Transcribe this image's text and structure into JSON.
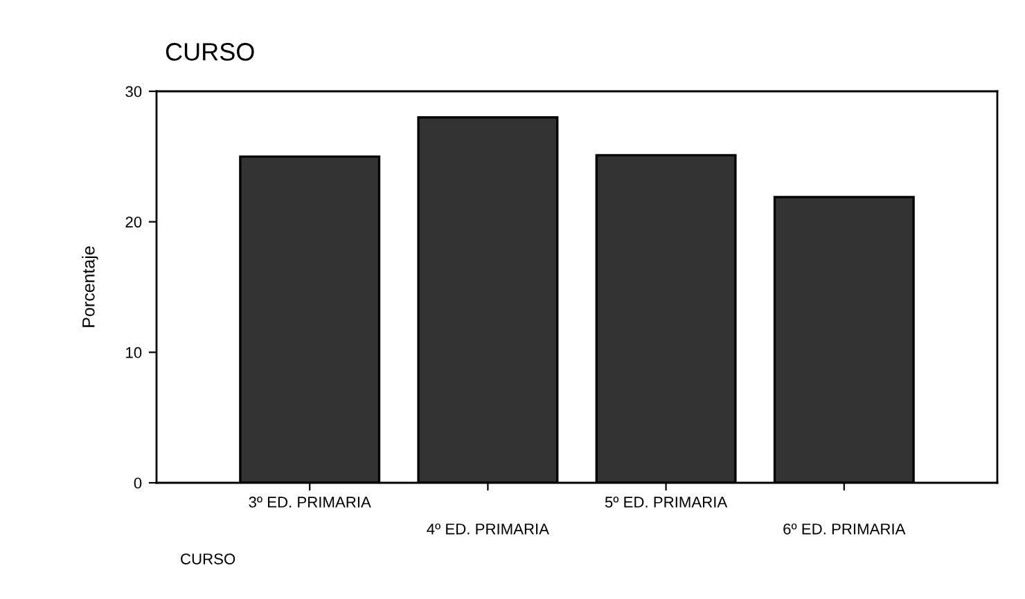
{
  "chart_data": {
    "type": "bar",
    "title": "CURSO",
    "xlabel": "CURSO",
    "ylabel": "Porcentaje",
    "categories": [
      "3º ED. PRIMARIA",
      "4º ED. PRIMARIA",
      "5º ED. PRIMARIA",
      "6º ED. PRIMARIA"
    ],
    "values": [
      25.0,
      28.0,
      25.1,
      21.9
    ],
    "color": "#333333",
    "ylim": [
      0,
      30
    ],
    "yticks": [
      0,
      10,
      20,
      30
    ],
    "grid": false,
    "legend": false
  }
}
